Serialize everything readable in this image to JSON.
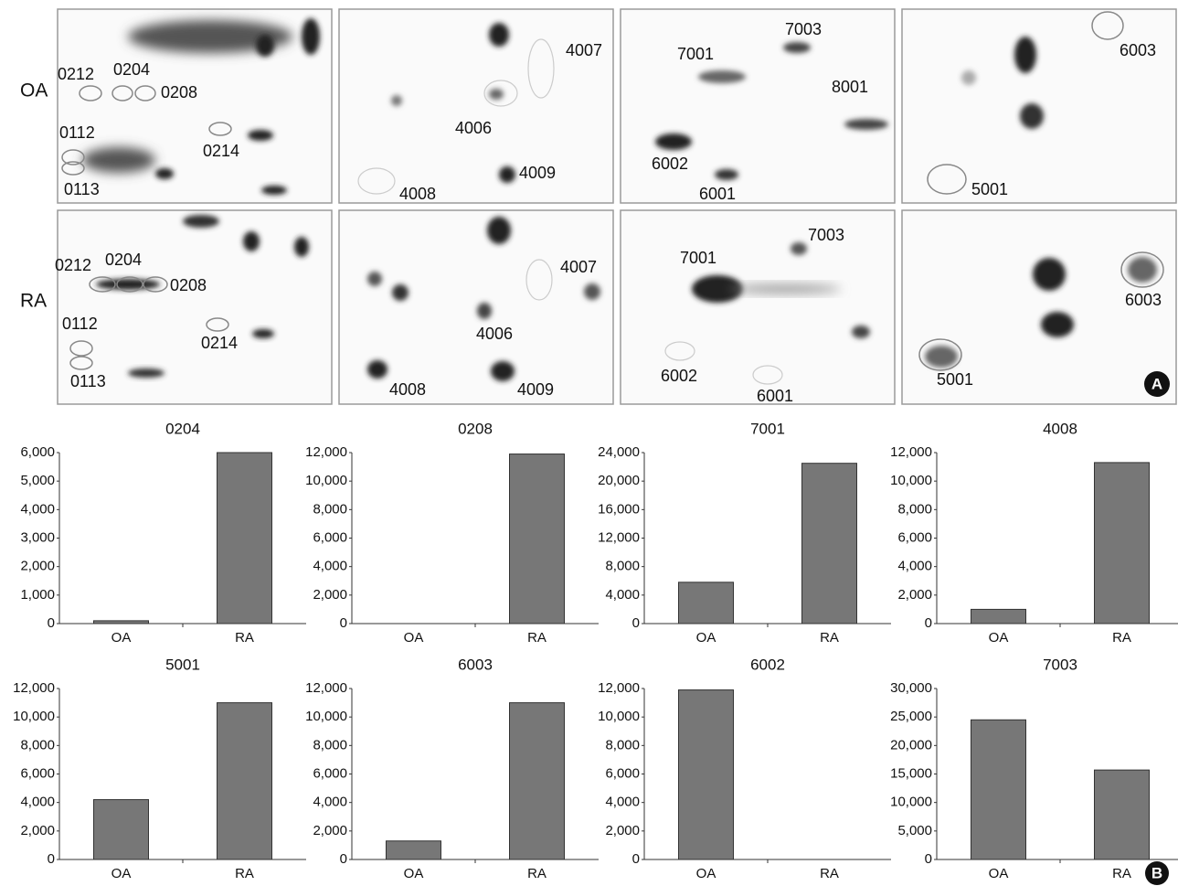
{
  "gel": {
    "rows": [
      {
        "label": "OA",
        "panels": [
          {
            "spots": [
              "0212",
              "0204",
              "0208",
              "0112",
              "0214",
              "0113"
            ]
          },
          {
            "spots": [
              "4007",
              "4006",
              "4009",
              "4008"
            ]
          },
          {
            "spots": [
              "7003",
              "7001",
              "8001",
              "6002",
              "6001"
            ]
          },
          {
            "spots": [
              "6003",
              "5001"
            ]
          }
        ]
      },
      {
        "label": "RA",
        "panels": [
          {
            "spots": [
              "0212",
              "0204",
              "0208",
              "0112",
              "0214",
              "0113"
            ]
          },
          {
            "spots": [
              "4007",
              "4006",
              "4008",
              "4009"
            ]
          },
          {
            "spots": [
              "7003",
              "7001",
              "6002",
              "6001"
            ]
          },
          {
            "spots": [
              "6003",
              "5001"
            ]
          }
        ]
      }
    ]
  },
  "panel_marks": [
    "A",
    "B"
  ],
  "chart_data": [
    {
      "type": "bar",
      "title": "0204",
      "categories": [
        "OA",
        "RA"
      ],
      "values": [
        100,
        6000
      ],
      "color": "#777777",
      "ylim": [
        0,
        6000
      ],
      "yticks": [
        0,
        {
          "value": 1000,
          "label": "1,000"
        },
        {
          "value": 2000,
          "label": "2,000"
        },
        {
          "value": 3000,
          "label": "3,000"
        },
        {
          "value": 4000,
          "label": "4,000"
        },
        {
          "value": 5000,
          "label": "5,000"
        },
        {
          "value": 6000,
          "label": "6,000"
        }
      ]
    },
    {
      "type": "bar",
      "title": "0208",
      "categories": [
        "OA",
        "RA"
      ],
      "values": [
        0,
        11900
      ],
      "color": "#777777",
      "ylim": [
        0,
        12000
      ],
      "yticks": [
        0,
        {
          "value": 2000,
          "label": "2,000"
        },
        {
          "value": 4000,
          "label": "4,000"
        },
        {
          "value": 6000,
          "label": "6,000"
        },
        {
          "value": 8000,
          "label": "8,000"
        },
        {
          "value": 10000,
          "label": "10,000"
        },
        {
          "value": 12000,
          "label": "12,000"
        }
      ]
    },
    {
      "type": "bar",
      "title": "7001",
      "categories": [
        "OA",
        "RA"
      ],
      "values": [
        5800,
        22500
      ],
      "color": "#777777",
      "ylim": [
        0,
        24000
      ],
      "yticks": [
        0,
        {
          "value": 4000,
          "label": "4,000"
        },
        {
          "value": 8000,
          "label": "8,000"
        },
        {
          "value": 12000,
          "label": "12,000"
        },
        {
          "value": 16000,
          "label": "16,000"
        },
        {
          "value": 20000,
          "label": "20,000"
        },
        {
          "value": 24000,
          "label": "24,000"
        }
      ]
    },
    {
      "type": "bar",
      "title": "4008",
      "categories": [
        "OA",
        "RA"
      ],
      "values": [
        1000,
        11300
      ],
      "color": "#777777",
      "ylim": [
        0,
        12000
      ],
      "yticks": [
        0,
        {
          "value": 2000,
          "label": "2,000"
        },
        {
          "value": 4000,
          "label": "4,000"
        },
        {
          "value": 6000,
          "label": "6,000"
        },
        {
          "value": 8000,
          "label": "8,000"
        },
        {
          "value": 10000,
          "label": "10,000"
        },
        {
          "value": 12000,
          "label": "12,000"
        }
      ]
    },
    {
      "type": "bar",
      "title": "5001",
      "categories": [
        "OA",
        "RA"
      ],
      "values": [
        4200,
        11000
      ],
      "color": "#777777",
      "ylim": [
        0,
        12000
      ],
      "yticks": [
        0,
        {
          "value": 2000,
          "label": "2,000"
        },
        {
          "value": 4000,
          "label": "4,000"
        },
        {
          "value": 6000,
          "label": "6,000"
        },
        {
          "value": 8000,
          "label": "8,000"
        },
        {
          "value": 10000,
          "label": "10,000"
        },
        {
          "value": 12000,
          "label": "12,000"
        }
      ]
    },
    {
      "type": "bar",
      "title": "6003",
      "categories": [
        "OA",
        "RA"
      ],
      "values": [
        1300,
        11000
      ],
      "color": "#777777",
      "ylim": [
        0,
        12000
      ],
      "yticks": [
        0,
        {
          "value": 2000,
          "label": "2,000"
        },
        {
          "value": 4000,
          "label": "4,000"
        },
        {
          "value": 6000,
          "label": "6,000"
        },
        {
          "value": 8000,
          "label": "8,000"
        },
        {
          "value": 10000,
          "label": "10,000"
        },
        {
          "value": 12000,
          "label": "12,000"
        }
      ]
    },
    {
      "type": "bar",
      "title": "6002",
      "categories": [
        "OA",
        "RA"
      ],
      "values": [
        11900,
        0
      ],
      "color": "#777777",
      "ylim": [
        0,
        12000
      ],
      "yticks": [
        0,
        {
          "value": 2000,
          "label": "2,000"
        },
        {
          "value": 4000,
          "label": "4,000"
        },
        {
          "value": 6000,
          "label": "6,000"
        },
        {
          "value": 8000,
          "label": "8,000"
        },
        {
          "value": 10000,
          "label": "10,000"
        },
        {
          "value": 12000,
          "label": "12,000"
        }
      ]
    },
    {
      "type": "bar",
      "title": "7003",
      "categories": [
        "OA",
        "RA"
      ],
      "values": [
        24500,
        15700
      ],
      "color": "#777777",
      "ylim": [
        0,
        30000
      ],
      "yticks": [
        0,
        {
          "value": 5000,
          "label": "5,000"
        },
        {
          "value": 10000,
          "label": "10,000"
        },
        {
          "value": 15000,
          "label": "15,000"
        },
        {
          "value": 20000,
          "label": "20,000"
        },
        {
          "value": 25000,
          "label": "25,000"
        },
        {
          "value": 30000,
          "label": "30,000"
        }
      ]
    }
  ]
}
